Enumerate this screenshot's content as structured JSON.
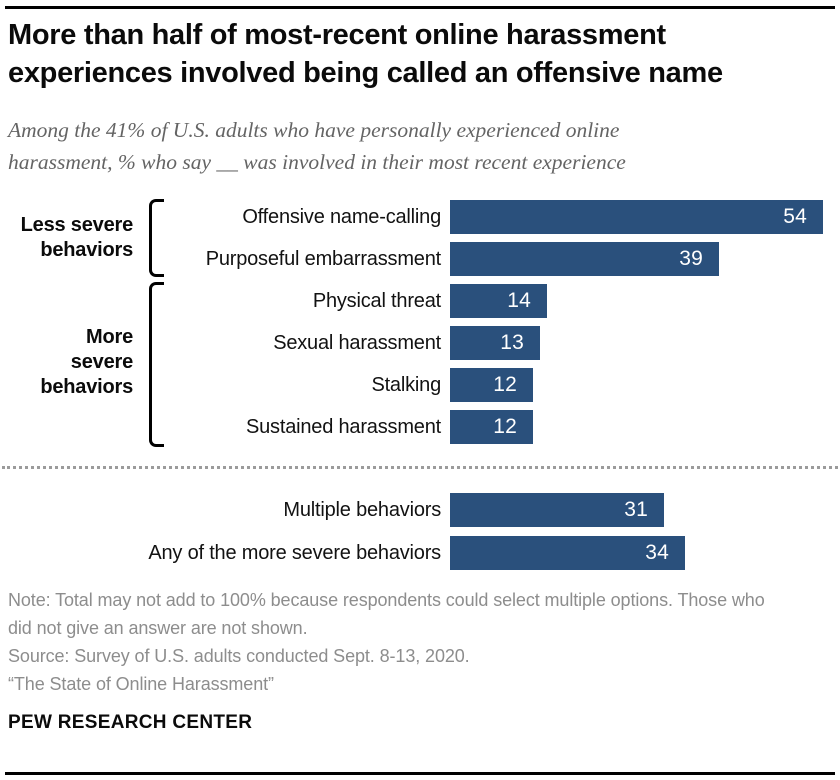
{
  "header": {
    "title": "More than half of most-recent online harassment experiences involved being called an offensive name",
    "subtitle": "Among the 41% of U.S. adults who have personally experienced online harassment, % who say __ was involved in their most recent experience"
  },
  "chart_data": {
    "type": "bar",
    "orientation": "horizontal",
    "unit": "%",
    "xlim": [
      0,
      60
    ],
    "bar_color": "#2A507C",
    "value_label_color": "#FFFFFF",
    "groups": [
      {
        "label": "Less severe behaviors",
        "rows": [
          {
            "label": "Offensive name-calling",
            "value": 54
          },
          {
            "label": "Purposeful embarrassment",
            "value": 39
          }
        ]
      },
      {
        "label": "More severe behaviors",
        "rows": [
          {
            "label": "Physical threat",
            "value": 14
          },
          {
            "label": "Sexual harassment",
            "value": 13
          },
          {
            "label": "Stalking",
            "value": 12
          },
          {
            "label": "Sustained harassment",
            "value": 12
          }
        ]
      }
    ],
    "summary_rows": [
      {
        "label": "Multiple behaviors",
        "value": 31
      },
      {
        "label": "Any of the more severe behaviors",
        "value": 34
      }
    ]
  },
  "footer": {
    "note": "Note: Total may not add to 100% because respondents could select multiple options. Those who did not give an answer are not shown.",
    "source": "Source: Survey of U.S. adults conducted Sept. 8-13, 2020.",
    "report": "“The State of Online Harassment”",
    "brand": "PEW RESEARCH CENTER"
  }
}
